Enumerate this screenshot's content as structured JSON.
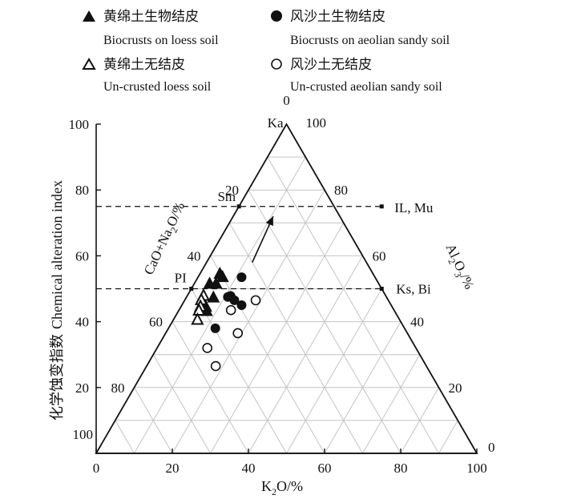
{
  "chart_data": {
    "type": "scatter",
    "subtype": "ternary diagram with chemical alteration index axis",
    "xlabel": "K",
    "xlabel_sub": "2",
    "xlabel_rest": "O/%",
    "ylabel_cn": "化学蚀变指数",
    "ylabel_en": "Chemical alteration index",
    "left_edge_label": {
      "a": "CaO+Na",
      "sub1": "2",
      "b": "O/%"
    },
    "right_edge_label": {
      "a": "Al",
      "sub1": "2",
      "b": "O",
      "sub2": "3",
      "c": "/%"
    },
    "xlim": [
      0,
      100
    ],
    "ylim": [
      0,
      100
    ],
    "x_ticks": [
      "0",
      "20",
      "40",
      "60",
      "80",
      "100"
    ],
    "y_ticks": [
      "100",
      "80",
      "60",
      "40",
      "20"
    ],
    "left_edge_ticks": [
      {
        "label": "0",
        "k2o": 50,
        "cia": 100
      },
      {
        "label": "20",
        "k2o": 40,
        "cia": 80
      },
      {
        "label": "40",
        "k2o": 30,
        "cia": 60
      },
      {
        "label": "60",
        "k2o": 20,
        "cia": 40
      },
      {
        "label": "80",
        "k2o": 10,
        "cia": 20
      },
      {
        "label": "100",
        "k2o": 0,
        "cia": 0
      }
    ],
    "right_edge_ticks": [
      {
        "label": "100",
        "k2o": 50,
        "cia": 100
      },
      {
        "label": "80",
        "k2o": 60,
        "cia": 80
      },
      {
        "label": "60",
        "k2o": 70,
        "cia": 60
      },
      {
        "label": "40",
        "k2o": 80,
        "cia": 40
      },
      {
        "label": "20",
        "k2o": 90,
        "cia": 20
      },
      {
        "label": "0",
        "k2o": 100,
        "cia": 0
      }
    ],
    "minerals": [
      {
        "label": "Ka",
        "k2o": 50,
        "cia": 100
      },
      {
        "label": "Sm",
        "k2o": 37.5,
        "cia": 75
      },
      {
        "label": "IL, Mu",
        "k2o": 75,
        "cia": 75
      },
      {
        "label": "PI",
        "k2o": 25,
        "cia": 50
      },
      {
        "label": "Ks, Bi",
        "k2o": 75,
        "cia": 50
      }
    ],
    "reference_lines": [
      {
        "cia": 75,
        "from_k2o": 0,
        "to_k2o": 75
      },
      {
        "cia": 50,
        "from_k2o": 0,
        "to_k2o": 75
      }
    ],
    "trend_arrow": {
      "from": [
        41,
        58
      ],
      "to": [
        46.5,
        72
      ]
    },
    "legend": [
      {
        "marker": "filled-triangle",
        "cn": "黄绵土生物结皮",
        "en": "Biocrusts on loess soil"
      },
      {
        "marker": "filled-circle",
        "cn": "风沙土生物结皮",
        "en": "Biocrusts on aeolian sandy soil"
      },
      {
        "marker": "open-triangle",
        "cn": "黄绵土无结皮",
        "en": "Un-crusted loess soil"
      },
      {
        "marker": "open-circle",
        "cn": "风沙土无结皮",
        "en": "Un-crusted aeolian sandy soil"
      }
    ],
    "series": [
      {
        "name": "Biocrusts on loess soil",
        "marker": "filled-triangle",
        "points": [
          [
            32.5,
            54.5
          ],
          [
            33.2,
            53.5
          ],
          [
            31.5,
            51.5
          ],
          [
            29.8,
            51.5
          ],
          [
            30.8,
            47.3
          ],
          [
            28.8,
            44.5
          ],
          [
            29.0,
            43.2
          ]
        ]
      },
      {
        "name": "Biocrusts on aeolian sandy soil",
        "marker": "filled-circle",
        "points": [
          [
            38.2,
            53.5
          ],
          [
            35.3,
            47.8
          ],
          [
            34.6,
            47.5
          ],
          [
            36.3,
            46.5
          ],
          [
            38.2,
            45.0
          ],
          [
            31.3,
            38.0
          ]
        ]
      },
      {
        "name": "Un-crusted loess soil",
        "marker": "open-triangle",
        "points": [
          [
            28.2,
            47.8
          ],
          [
            27.6,
            46.5
          ],
          [
            27.4,
            44.5
          ],
          [
            27.0,
            43.3
          ],
          [
            26.6,
            40.5
          ]
        ]
      },
      {
        "name": "Un-crusted aeolian sandy soil",
        "marker": "open-circle",
        "points": [
          [
            41.9,
            46.5
          ],
          [
            35.4,
            43.5
          ],
          [
            37.2,
            36.5
          ],
          [
            29.2,
            32.0
          ],
          [
            31.4,
            26.5
          ]
        ]
      }
    ]
  }
}
